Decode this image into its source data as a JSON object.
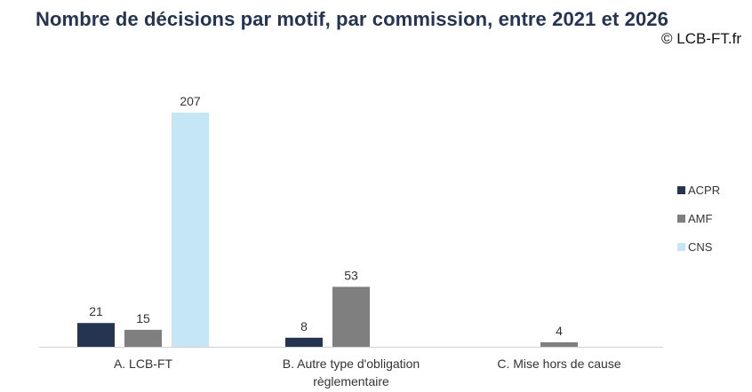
{
  "title": "Nombre de décisions par motif, par commission, entre 2021 et 2026",
  "credit": "© LCB-FT.fr",
  "colors": {
    "ACPR": "#243451",
    "AMF": "#7f7f7f",
    "CNS": "#c5e6f5",
    "axis": "#d0d0d0",
    "title": "#243451"
  },
  "chart_data": {
    "type": "bar",
    "title": "Nombre de décisions par motif, par commission, entre 2021 et 2026",
    "categories": [
      [
        "A. LCB-FT"
      ],
      [
        "B. Autre type d'obligation",
        "règlementaire"
      ],
      [
        "C. Mise hors de cause"
      ]
    ],
    "series": [
      {
        "name": "ACPR",
        "values": [
          21,
          8,
          null
        ]
      },
      {
        "name": "AMF",
        "values": [
          15,
          53,
          4
        ]
      },
      {
        "name": "CNS",
        "values": [
          207,
          null,
          null
        ]
      }
    ],
    "ylim": [
      0,
      207
    ],
    "grid": false,
    "legend": "right",
    "data_labels": true
  }
}
